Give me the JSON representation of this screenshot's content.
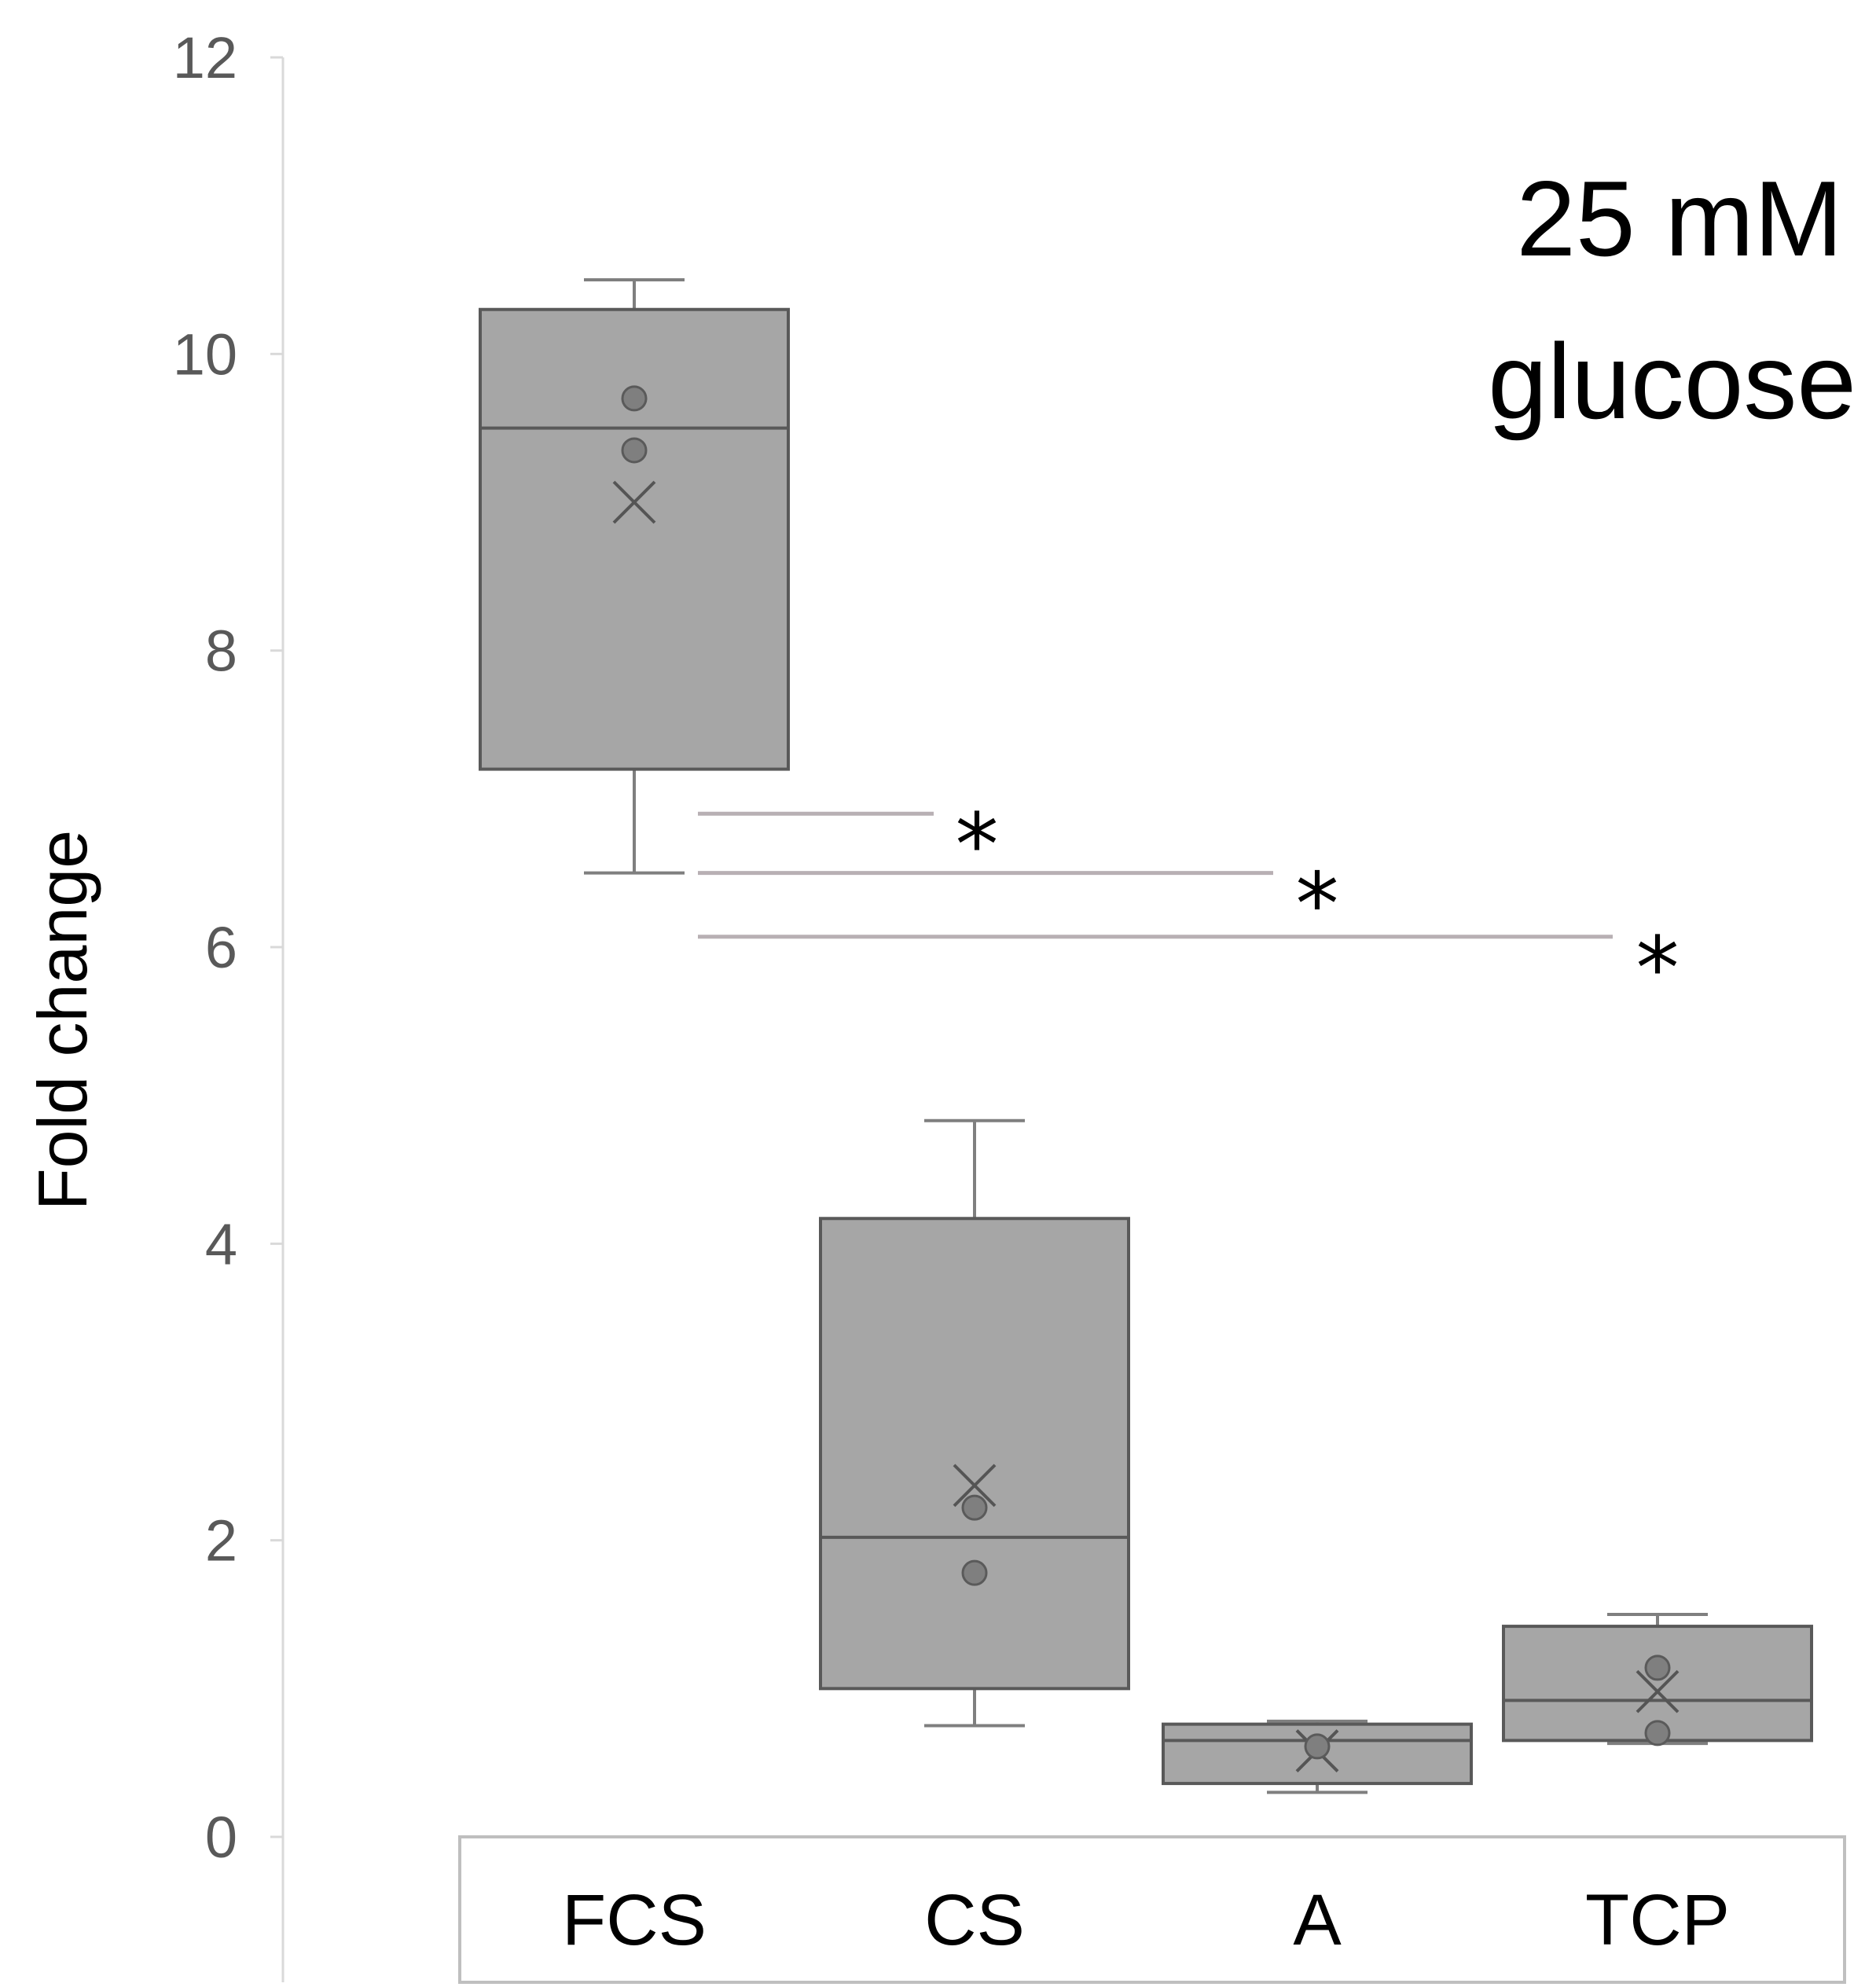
{
  "chart_data": {
    "type": "box",
    "title": "",
    "annotation": [
      "25 mM",
      "glucose"
    ],
    "xlabel": "",
    "ylabel": "Fold change",
    "ylim": [
      0,
      12
    ],
    "yticks": [
      0,
      2,
      4,
      6,
      8,
      10,
      12
    ],
    "ytick_labels": [
      "0",
      "2",
      "4",
      "6",
      "8",
      "10",
      "12"
    ],
    "grid": false,
    "legend": "none",
    "categories": [
      "FCS",
      "CS",
      "A",
      "TCP"
    ],
    "boxes": [
      {
        "name": "FCS",
        "min": 6.5,
        "q1": 7.2,
        "median": 9.5,
        "q3": 10.3,
        "max": 10.5,
        "mean": 9.0,
        "points": [
          9.7,
          9.35
        ]
      },
      {
        "name": "CS",
        "min": 0.75,
        "q1": 1.0,
        "median": 2.02,
        "q3": 4.17,
        "max": 4.83,
        "mean": 2.37,
        "points": [
          2.22,
          1.78
        ]
      },
      {
        "name": "A",
        "min": 0.3,
        "q1": 0.36,
        "median": 0.65,
        "q3": 0.76,
        "max": 0.78,
        "mean": 0.58,
        "points": [
          0.61
        ]
      },
      {
        "name": "TCP",
        "min": 0.63,
        "q1": 0.65,
        "median": 0.92,
        "q3": 1.42,
        "max": 1.5,
        "mean": 0.98,
        "points": [
          1.14,
          0.7
        ]
      }
    ],
    "significance": [
      {
        "from": "FCS",
        "to": "CS",
        "y": 6.9,
        "label": "*"
      },
      {
        "from": "FCS",
        "to": "A",
        "y": 6.5,
        "label": "*"
      },
      {
        "from": "FCS",
        "to": "TCP",
        "y": 6.07,
        "label": "*"
      }
    ],
    "colors": {
      "box_fill": "#a6a6a6",
      "box_edge": "#595959",
      "axis": "#d9d9d9",
      "sig_line": "#b8b0b4",
      "point": "#7f7f7f"
    }
  }
}
